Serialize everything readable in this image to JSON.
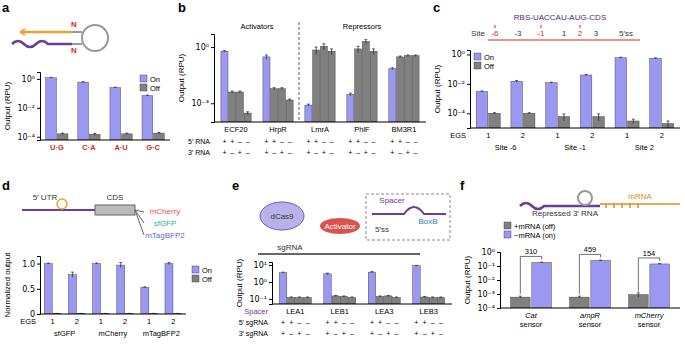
{
  "chart_data": [
    {
      "panel": "a",
      "type": "bar",
      "log": "y",
      "categories": [
        "U·G",
        "C·A",
        "A·U",
        "G·C"
      ],
      "series": [
        {
          "name": "On",
          "color": "#9b98f2",
          "values": [
            1.2,
            0.6,
            0.25,
            0.07
          ],
          "errors": [
            0.08,
            0.04,
            0.02,
            0.006
          ]
        },
        {
          "name": "Off",
          "color": "#808080",
          "values": [
            0.00016,
            0.00015,
            0.00016,
            0.00018
          ],
          "errors": [
            2e-05,
            2e-05,
            2e-05,
            2e-05
          ]
        }
      ],
      "y_label": "Output (RPU)",
      "ylim": [
        6e-05,
        3
      ],
      "yticks": [
        {
          "value": 0.0001,
          "label": "10⁻⁴"
        },
        {
          "value": 0.01,
          "label": "10⁻²"
        },
        {
          "value": 1,
          "label": "10⁰"
        }
      ],
      "legend": "top-right",
      "schematic_labels": [
        "N",
        "N"
      ]
    },
    {
      "panel": "b",
      "type": "bar",
      "log": "y",
      "categories": [
        "ECF20",
        "HrpR",
        "LmrA",
        "PhlF",
        "BM3R1"
      ],
      "series": [
        {
          "color": "#9b98f2",
          "values": [
            0.6,
            0.3,
            0.0008,
            0.003,
            0.07
          ],
          "errors": [
            0.05,
            0.08,
            0.0001,
            0.0005,
            0.008
          ]
        },
        {
          "color": "#808080",
          "values": [
            0.004,
            0.006,
            0.7,
            0.8,
            0.3
          ],
          "errors": [
            0.0005,
            0.0008,
            0.3,
            0.3,
            0.03
          ]
        },
        {
          "color": "#808080",
          "values": [
            0.004,
            0.006,
            1.1,
            2.0,
            0.35
          ],
          "errors": [
            0.0005,
            0.0008,
            0.4,
            0.5,
            0.03
          ]
        },
        {
          "color": "#808080",
          "values": [
            0.0003,
            0.0015,
            0.6,
            0.6,
            0.35
          ],
          "errors": [
            5e-05,
            0.0002,
            0.2,
            0.2,
            0.03
          ]
        }
      ],
      "sections": [
        {
          "label": "Activators",
          "categories": [
            "ECF20",
            "HrpR"
          ]
        },
        {
          "label": "Repressors",
          "categories": [
            "LmrA",
            "PhlF",
            "BM3R1"
          ]
        }
      ],
      "sign_rows": [
        {
          "label": "5′ RNA",
          "signs": [
            "+",
            "+",
            "–",
            "–"
          ]
        },
        {
          "label": "3′ RNA",
          "signs": [
            "+",
            "–",
            "+",
            "–"
          ]
        }
      ],
      "y_label": "Output (RPU)",
      "ylim": [
        0.0001,
        5
      ],
      "yticks": [
        {
          "value": 0.001,
          "label": "10⁻³"
        },
        {
          "value": 1,
          "label": "10⁰"
        }
      ]
    },
    {
      "panel": "c",
      "type": "bar",
      "log": "y",
      "categories": [
        "1",
        "2",
        "1",
        "2",
        "1",
        "2"
      ],
      "x_label": "EGS",
      "groups": [
        "Site -6",
        "Site -1",
        "Site 2"
      ],
      "series": [
        {
          "name": "On",
          "color": "#9b98f2",
          "values": [
            0.003,
            0.015,
            0.012,
            0.04,
            0.6,
            0.55
          ],
          "errors": [
            0.0003,
            0.002,
            0.001,
            0.004,
            0.05,
            0.04
          ]
        },
        {
          "name": "Off",
          "color": "#808080",
          "values": [
            0.0001,
            0.0001,
            6e-05,
            6e-05,
            3e-05,
            2e-05
          ],
          "errors": [
            1e-05,
            1e-05,
            3e-05,
            3e-05,
            1e-05,
            1e-05
          ]
        }
      ],
      "y_label": "Output (RPU)",
      "ylim": [
        1e-05,
        2
      ],
      "yticks": [
        {
          "value": 0.0001,
          "label": "10⁻⁴"
        },
        {
          "value": 0.01,
          "label": "10⁻²"
        },
        {
          "value": 1,
          "label": "10⁰"
        }
      ],
      "legend": "top-left",
      "schematic_labels": [
        "RBS-UACCAU-AUG-CDS",
        "Site",
        "-6",
        "-3",
        "-1",
        "1",
        "2",
        "3",
        "5′ss"
      ]
    },
    {
      "panel": "d",
      "type": "bar",
      "categories": [
        "1",
        "2",
        "1",
        "2",
        "1",
        "2"
      ],
      "x_label": "EGS",
      "groups": [
        "sfGFP",
        "mCherry",
        "mTagBFP2"
      ],
      "series": [
        {
          "name": "On",
          "color": "#9b98f2",
          "values": [
            1.0,
            0.78,
            1.0,
            0.97,
            0.53,
            1.0
          ],
          "errors": [
            0.01,
            0.05,
            0.01,
            0.05,
            0.01,
            0.02
          ]
        },
        {
          "name": "Off",
          "color": "#808080",
          "values": [
            0.01,
            0.01,
            0.01,
            0.01,
            0.01,
            0.01
          ],
          "errors": [
            0.002,
            0.002,
            0.002,
            0.002,
            0.002,
            0.002
          ]
        }
      ],
      "y_label": "Normalized output",
      "ylim": [
        0,
        1.15
      ],
      "yticks": [
        0,
        0.5,
        {
          "value": 1,
          "label": "1.0"
        }
      ],
      "legend": "right",
      "schematic_labels": [
        "5′ UTR",
        "CDS",
        "mCherry",
        "sfGFP",
        "mTagBFP2"
      ]
    },
    {
      "panel": "e",
      "type": "bar",
      "log": "y",
      "categories": [
        "LEA1",
        "LEB1",
        "LEA3",
        "LEB3"
      ],
      "x_label": "Spacer",
      "series": [
        {
          "color": "#9b98f2",
          "values": [
            3.5,
            3.0,
            3.8,
            9.0
          ],
          "errors": [
            0.3,
            0.3,
            0.4,
            0.5
          ]
        },
        {
          "color": "#808080",
          "values": [
            0.12,
            0.15,
            0.14,
            0.13
          ],
          "errors": [
            0.01,
            0.01,
            0.01,
            0.01
          ]
        },
        {
          "color": "#808080",
          "values": [
            0.12,
            0.14,
            0.15,
            0.12
          ],
          "errors": [
            0.01,
            0.01,
            0.01,
            0.01
          ]
        },
        {
          "color": "#808080",
          "values": [
            0.12,
            0.12,
            0.12,
            0.12
          ],
          "errors": [
            0.01,
            0.01,
            0.01,
            0.01
          ]
        }
      ],
      "sign_rows": [
        {
          "label": "5′ sgRNA",
          "signs": [
            "+",
            "+",
            "–",
            "–"
          ]
        },
        {
          "label": "3′ sgRNA",
          "signs": [
            "+",
            "–",
            "+",
            "–"
          ]
        }
      ],
      "y_label": "Output (RPU)",
      "ylim": [
        0.05,
        15
      ],
      "yticks": [
        {
          "value": 0.1,
          "label": "10⁻¹"
        },
        {
          "value": 1,
          "label": "10⁰"
        },
        {
          "value": 10,
          "label": "10¹"
        }
      ],
      "schematic_labels": [
        "dCas9",
        "sgRNA",
        "Activator",
        "Spacer",
        "5′ss",
        "BoxB"
      ]
    },
    {
      "panel": "f",
      "type": "bar",
      "log": "y",
      "categories": [
        "Cat sensor",
        "ampR sensor",
        "mCherry sensor"
      ],
      "series": [
        {
          "name": "+mRNA (off)",
          "color": "#808080",
          "values": [
            0.0006,
            0.0006,
            0.0009
          ],
          "errors": [
            0.0001,
            0.0001,
            0.0003
          ]
        },
        {
          "name": "−mRNA (on)",
          "color": "#9b98f2",
          "values": [
            0.18,
            0.25,
            0.14
          ],
          "errors": [
            0.01,
            0.015,
            0.01
          ]
        }
      ],
      "fold_changes": [
        310,
        459,
        154
      ],
      "y_label": "Output (RPU)",
      "ylim": [
        0.0001,
        1
      ],
      "yticks": [
        {
          "value": 0.0001,
          "label": "10⁻⁴"
        },
        {
          "value": 0.001,
          "label": "10⁻³"
        },
        {
          "value": 0.01,
          "label": "10⁻²"
        },
        {
          "value": 0.1,
          "label": "10⁻¹"
        },
        {
          "value": 1,
          "label": "10⁰"
        }
      ],
      "legend": "top-left",
      "schematic_labels": [
        "mRNA",
        "Repressed 3′ RNA"
      ]
    }
  ]
}
